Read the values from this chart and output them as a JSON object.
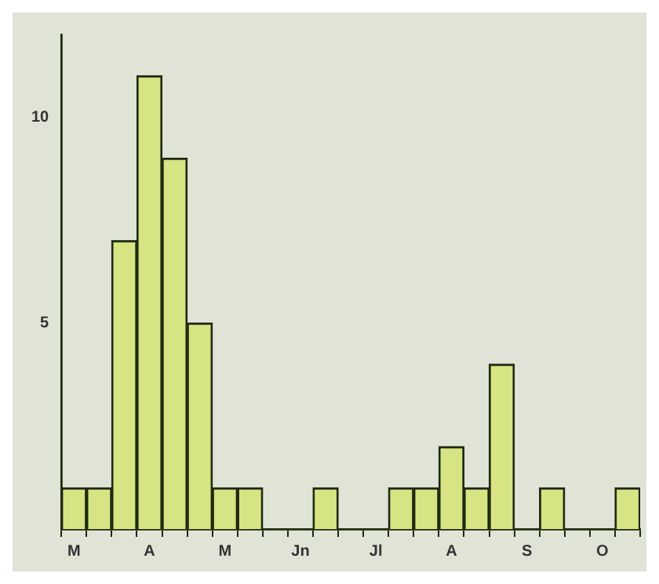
{
  "chart_data": {
    "type": "bar",
    "categories": [
      "M",
      null,
      null,
      "A",
      null,
      null,
      "M",
      null,
      null,
      "Jn",
      null,
      null,
      "Jl",
      null,
      null,
      "A",
      null,
      null,
      "S",
      null,
      null,
      "O",
      null
    ],
    "values": [
      1,
      1,
      7,
      11,
      9,
      5,
      1,
      1,
      0,
      0,
      1,
      0,
      0,
      1,
      1,
      2,
      1,
      4,
      0,
      1,
      0,
      0,
      1
    ],
    "color": "#d6e483",
    "ylim": [
      0,
      12
    ],
    "yticks": [
      5,
      10
    ],
    "grid": false,
    "legend": false
  }
}
